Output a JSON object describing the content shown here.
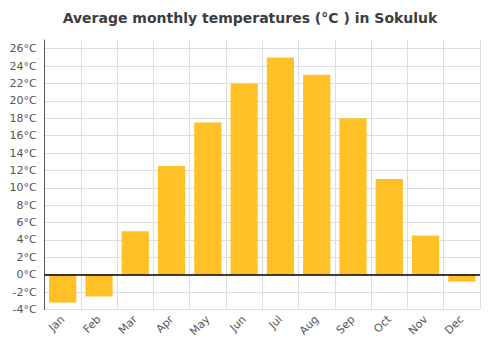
{
  "chart_data": {
    "type": "bar",
    "title": "Average monthly temperatures (°C ) in Sokuluk",
    "categories": [
      "Jan",
      "Feb",
      "Mar",
      "Apr",
      "May",
      "Jun",
      "Jul",
      "Aug",
      "Sep",
      "Oct",
      "Nov",
      "Dec"
    ],
    "values": [
      -3.2,
      -2.5,
      5.0,
      12.5,
      17.5,
      22.0,
      25.0,
      23.0,
      18.0,
      11.0,
      4.5,
      -0.8
    ],
    "color": "#FFC125",
    "ylim": [
      -4,
      27
    ],
    "yticks": [
      {
        "value": -4,
        "label": "-4°C"
      },
      {
        "value": -2,
        "label": "-2°C"
      },
      {
        "value": 0,
        "label": "0°C"
      },
      {
        "value": 2,
        "label": "2°C"
      },
      {
        "value": 4,
        "label": "4°C"
      },
      {
        "value": 6,
        "label": "6°C"
      },
      {
        "value": 8,
        "label": "8°C"
      },
      {
        "value": 10,
        "label": "10°C"
      },
      {
        "value": 12,
        "label": "12°C"
      },
      {
        "value": 14,
        "label": "14°C"
      },
      {
        "value": 16,
        "label": "16°C"
      },
      {
        "value": 18,
        "label": "18°C"
      },
      {
        "value": 20,
        "label": "20°C"
      },
      {
        "value": 22,
        "label": "22°C"
      },
      {
        "value": 24,
        "label": "24°C"
      },
      {
        "value": 26,
        "label": "26°C"
      }
    ],
    "grid": true
  }
}
